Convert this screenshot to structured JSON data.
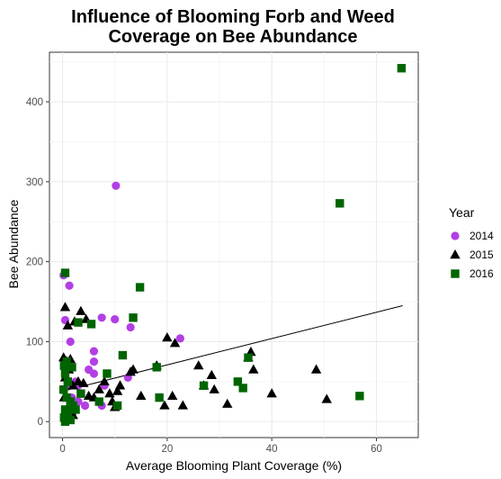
{
  "chart_data": {
    "type": "scatter",
    "title_lines": [
      "Influence of Blooming Forb and Weed",
      "Coverage on Bee Abundance"
    ],
    "xlabel": "Average Blooming Plant Coverage (%)",
    "ylabel": "Bee Abundance",
    "xlim": [
      -2.5,
      68
    ],
    "ylim": [
      -20,
      462
    ],
    "x_ticks": [
      0,
      20,
      40,
      60
    ],
    "y_ticks": [
      0,
      100,
      200,
      300,
      400
    ],
    "x_tick_labels": [
      "0",
      "20",
      "40",
      "60"
    ],
    "y_tick_labels": [
      "0",
      "100",
      "200",
      "300",
      "400"
    ],
    "grid": true,
    "legend": {
      "title": "Year",
      "position": "right"
    },
    "trend_line": {
      "x": [
        0,
        65
      ],
      "y": [
        38,
        145
      ],
      "color": "#000000"
    },
    "series": [
      {
        "name": "2014",
        "shape": "circle",
        "color": "#b23fe5",
        "points": [
          [
            0.2,
            183
          ],
          [
            0.5,
            127
          ],
          [
            1.3,
            170
          ],
          [
            1.5,
            100
          ],
          [
            0.8,
            75
          ],
          [
            1.0,
            45
          ],
          [
            1.8,
            30
          ],
          [
            2.5,
            50
          ],
          [
            3.0,
            45
          ],
          [
            4.3,
            20
          ],
          [
            5.0,
            65
          ],
          [
            6.0,
            75
          ],
          [
            6.0,
            88
          ],
          [
            6.0,
            60
          ],
          [
            7.5,
            130
          ],
          [
            8.0,
            45
          ],
          [
            8.5,
            60
          ],
          [
            10.0,
            128
          ],
          [
            10.2,
            295
          ],
          [
            13.0,
            118
          ],
          [
            12.5,
            55
          ],
          [
            22.5,
            104
          ],
          [
            7.5,
            20
          ],
          [
            3.0,
            25
          ],
          [
            0.5,
            10
          ],
          [
            1.5,
            5
          ],
          [
            2.0,
            12
          ]
        ]
      },
      {
        "name": "2015",
        "shape": "triangle",
        "color": "#000000",
        "points": [
          [
            0.5,
            143
          ],
          [
            1.0,
            120
          ],
          [
            2.3,
            125
          ],
          [
            3.5,
            138
          ],
          [
            4.5,
            128
          ],
          [
            0.2,
            80
          ],
          [
            0.8,
            75
          ],
          [
            1.5,
            78
          ],
          [
            0.5,
            55
          ],
          [
            1.2,
            65
          ],
          [
            2.0,
            45
          ],
          [
            3.0,
            50
          ],
          [
            4.0,
            48
          ],
          [
            5.0,
            32
          ],
          [
            6.0,
            30
          ],
          [
            7.0,
            40
          ],
          [
            8.0,
            50
          ],
          [
            9.0,
            35
          ],
          [
            9.5,
            25
          ],
          [
            10.5,
            38
          ],
          [
            11.0,
            45
          ],
          [
            13.0,
            62
          ],
          [
            13.5,
            65
          ],
          [
            15.0,
            32
          ],
          [
            18.0,
            70
          ],
          [
            19.5,
            20
          ],
          [
            20.0,
            105
          ],
          [
            21.5,
            98
          ],
          [
            21.0,
            32
          ],
          [
            23.0,
            20
          ],
          [
            26.0,
            70
          ],
          [
            27.0,
            45
          ],
          [
            28.5,
            58
          ],
          [
            29.0,
            40
          ],
          [
            31.5,
            22
          ],
          [
            35.5,
            80
          ],
          [
            36.0,
            87
          ],
          [
            36.5,
            65
          ],
          [
            40.0,
            35
          ],
          [
            48.5,
            65
          ],
          [
            50.5,
            28
          ],
          [
            10.0,
            18
          ],
          [
            0.3,
            30
          ],
          [
            1.0,
            18
          ],
          [
            0.5,
            5
          ],
          [
            2.0,
            8
          ]
        ]
      },
      {
        "name": "2016",
        "shape": "square",
        "color": "#006400",
        "points": [
          [
            0.5,
            186
          ],
          [
            3.0,
            124
          ],
          [
            5.5,
            122
          ],
          [
            0.3,
            70
          ],
          [
            0.8,
            75
          ],
          [
            0.5,
            60
          ],
          [
            1.0,
            50
          ],
          [
            0.2,
            40
          ],
          [
            0.8,
            30
          ],
          [
            1.5,
            25
          ],
          [
            2.0,
            20
          ],
          [
            0.5,
            15
          ],
          [
            1.0,
            10
          ],
          [
            0.3,
            5
          ],
          [
            1.5,
            2
          ],
          [
            0.5,
            0
          ],
          [
            3.5,
            35
          ],
          [
            7.0,
            25
          ],
          [
            8.5,
            60
          ],
          [
            10.5,
            20
          ],
          [
            11.5,
            83
          ],
          [
            13.5,
            130
          ],
          [
            14.8,
            168
          ],
          [
            18.0,
            68
          ],
          [
            18.5,
            30
          ],
          [
            27.0,
            45
          ],
          [
            33.5,
            50
          ],
          [
            34.5,
            42
          ],
          [
            35.5,
            80
          ],
          [
            53.0,
            273
          ],
          [
            56.8,
            32
          ],
          [
            64.8,
            442
          ],
          [
            2.5,
            15
          ],
          [
            1.8,
            68
          ]
        ]
      }
    ]
  }
}
